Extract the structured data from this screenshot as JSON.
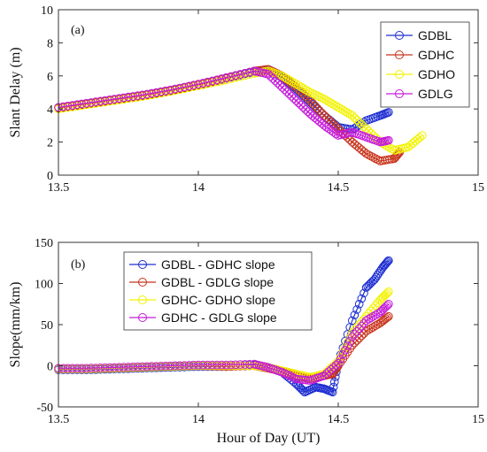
{
  "figure": {
    "xlabel": "Hour of Day (UT)"
  },
  "chart_data": [
    {
      "type": "scatter",
      "panel_label": "(a)",
      "ylabel": "Slant Delay (m)",
      "xlim": [
        13.5,
        15
      ],
      "ylim": [
        0,
        10
      ],
      "x_ticks": [
        "13.5",
        "14",
        "14.5",
        "15"
      ],
      "y_ticks": [
        "0",
        "2",
        "4",
        "6",
        "8",
        "10"
      ],
      "grid": false,
      "legend_position": "top-right",
      "series": [
        {
          "name": "GDBL",
          "color": "#1f2fd1",
          "points": [
            [
              13.5,
              4.05
            ],
            [
              13.6,
              4.3
            ],
            [
              13.7,
              4.55
            ],
            [
              13.8,
              4.8
            ],
            [
              13.9,
              5.1
            ],
            [
              14.0,
              5.45
            ],
            [
              14.1,
              5.85
            ],
            [
              14.2,
              6.25
            ],
            [
              14.25,
              6.35
            ],
            [
              14.3,
              5.9
            ],
            [
              14.35,
              5.2
            ],
            [
              14.4,
              4.4
            ],
            [
              14.45,
              3.6
            ],
            [
              14.5,
              2.9
            ],
            [
              14.55,
              2.75
            ],
            [
              14.6,
              3.3
            ],
            [
              14.65,
              3.6
            ],
            [
              14.68,
              3.8
            ]
          ]
        },
        {
          "name": "GDHC",
          "color": "#c8341c",
          "points": [
            [
              13.5,
              4.05
            ],
            [
              13.6,
              4.3
            ],
            [
              13.7,
              4.55
            ],
            [
              13.8,
              4.8
            ],
            [
              13.9,
              5.1
            ],
            [
              14.0,
              5.45
            ],
            [
              14.1,
              5.85
            ],
            [
              14.2,
              6.3
            ],
            [
              14.25,
              6.4
            ],
            [
              14.3,
              6.0
            ],
            [
              14.35,
              5.3
            ],
            [
              14.4,
              4.5
            ],
            [
              14.45,
              3.6
            ],
            [
              14.5,
              2.8
            ],
            [
              14.55,
              2.0
            ],
            [
              14.6,
              1.3
            ],
            [
              14.65,
              0.85
            ],
            [
              14.7,
              1.0
            ],
            [
              14.72,
              1.4
            ]
          ]
        },
        {
          "name": "GDHO",
          "color": "#f2f200",
          "points": [
            [
              13.5,
              4.0
            ],
            [
              13.6,
              4.25
            ],
            [
              13.7,
              4.5
            ],
            [
              13.8,
              4.75
            ],
            [
              13.9,
              5.05
            ],
            [
              14.0,
              5.4
            ],
            [
              14.1,
              5.75
            ],
            [
              14.2,
              6.15
            ],
            [
              14.25,
              6.3
            ],
            [
              14.3,
              6.0
            ],
            [
              14.35,
              5.5
            ],
            [
              14.4,
              5.0
            ],
            [
              14.45,
              4.6
            ],
            [
              14.5,
              4.1
            ],
            [
              14.55,
              3.6
            ],
            [
              14.6,
              2.8
            ],
            [
              14.65,
              2.0
            ],
            [
              14.7,
              1.5
            ],
            [
              14.75,
              1.7
            ],
            [
              14.8,
              2.4
            ]
          ]
        },
        {
          "name": "GDLG",
          "color": "#c51bd9",
          "points": [
            [
              13.5,
              4.1
            ],
            [
              13.6,
              4.35
            ],
            [
              13.7,
              4.6
            ],
            [
              13.8,
              4.85
            ],
            [
              13.9,
              5.15
            ],
            [
              14.0,
              5.5
            ],
            [
              14.1,
              5.9
            ],
            [
              14.2,
              6.3
            ],
            [
              14.25,
              6.1
            ],
            [
              14.3,
              5.3
            ],
            [
              14.35,
              4.5
            ],
            [
              14.4,
              3.7
            ],
            [
              14.45,
              3.0
            ],
            [
              14.5,
              2.4
            ],
            [
              14.55,
              2.6
            ],
            [
              14.6,
              2.3
            ],
            [
              14.65,
              2.0
            ],
            [
              14.68,
              2.1
            ]
          ]
        }
      ]
    },
    {
      "type": "scatter",
      "panel_label": "(b)",
      "ylabel": "Slope(mm/km)",
      "xlim": [
        13.5,
        15
      ],
      "ylim": [
        -50,
        150
      ],
      "x_ticks": [
        "13.5",
        "14",
        "14.5",
        "15"
      ],
      "y_ticks": [
        "-50",
        "0",
        "50",
        "100",
        "150"
      ],
      "grid": false,
      "legend_position": "top-left",
      "series": [
        {
          "name": "GDBL - GDHC slope",
          "color": "#1f2fd1",
          "points": [
            [
              13.5,
              -5
            ],
            [
              13.6,
              -5
            ],
            [
              13.7,
              -4
            ],
            [
              13.8,
              -3
            ],
            [
              13.9,
              -2
            ],
            [
              14.0,
              -1
            ],
            [
              14.1,
              -1
            ],
            [
              14.2,
              1
            ],
            [
              14.25,
              -2
            ],
            [
              14.3,
              -8
            ],
            [
              14.35,
              -22
            ],
            [
              14.38,
              -32
            ],
            [
              14.42,
              -26
            ],
            [
              14.45,
              -28
            ],
            [
              14.48,
              -32
            ],
            [
              14.5,
              5
            ],
            [
              14.55,
              55
            ],
            [
              14.6,
              95
            ],
            [
              14.63,
              105
            ],
            [
              14.66,
              120
            ],
            [
              14.68,
              128
            ]
          ]
        },
        {
          "name": "GDBL - GDLG slope",
          "color": "#c8341c",
          "points": [
            [
              13.5,
              -4
            ],
            [
              13.6,
              -4
            ],
            [
              13.7,
              -3
            ],
            [
              13.8,
              -2
            ],
            [
              13.9,
              -1
            ],
            [
              14.0,
              0
            ],
            [
              14.1,
              -1
            ],
            [
              14.2,
              0
            ],
            [
              14.25,
              -3
            ],
            [
              14.3,
              -7
            ],
            [
              14.35,
              -12
            ],
            [
              14.4,
              -16
            ],
            [
              14.45,
              -12
            ],
            [
              14.48,
              -10
            ],
            [
              14.5,
              0
            ],
            [
              14.55,
              25
            ],
            [
              14.6,
              42
            ],
            [
              14.65,
              52
            ],
            [
              14.68,
              60
            ]
          ]
        },
        {
          "name": "GDHC- GDHO slope",
          "color": "#f2f200",
          "points": [
            [
              13.5,
              -4
            ],
            [
              13.6,
              -4
            ],
            [
              13.7,
              -3
            ],
            [
              13.8,
              -2
            ],
            [
              13.9,
              -1
            ],
            [
              14.0,
              0
            ],
            [
              14.1,
              0
            ],
            [
              14.2,
              0
            ],
            [
              14.25,
              -2
            ],
            [
              14.3,
              -6
            ],
            [
              14.35,
              -10
            ],
            [
              14.4,
              -14
            ],
            [
              14.45,
              -10
            ],
            [
              14.5,
              5
            ],
            [
              14.55,
              40
            ],
            [
              14.6,
              60
            ],
            [
              14.65,
              80
            ],
            [
              14.68,
              90
            ]
          ]
        },
        {
          "name": "GDHC - GDLG slope",
          "color": "#c51bd9",
          "points": [
            [
              13.5,
              -3
            ],
            [
              13.6,
              -3
            ],
            [
              13.7,
              -2
            ],
            [
              13.8,
              -1
            ],
            [
              13.9,
              0
            ],
            [
              14.0,
              1
            ],
            [
              14.1,
              1
            ],
            [
              14.2,
              2
            ],
            [
              14.25,
              -2
            ],
            [
              14.3,
              -8
            ],
            [
              14.35,
              -16
            ],
            [
              14.4,
              -18
            ],
            [
              14.45,
              -12
            ],
            [
              14.5,
              3
            ],
            [
              14.55,
              35
            ],
            [
              14.6,
              55
            ],
            [
              14.65,
              65
            ],
            [
              14.68,
              75
            ]
          ]
        }
      ]
    }
  ]
}
